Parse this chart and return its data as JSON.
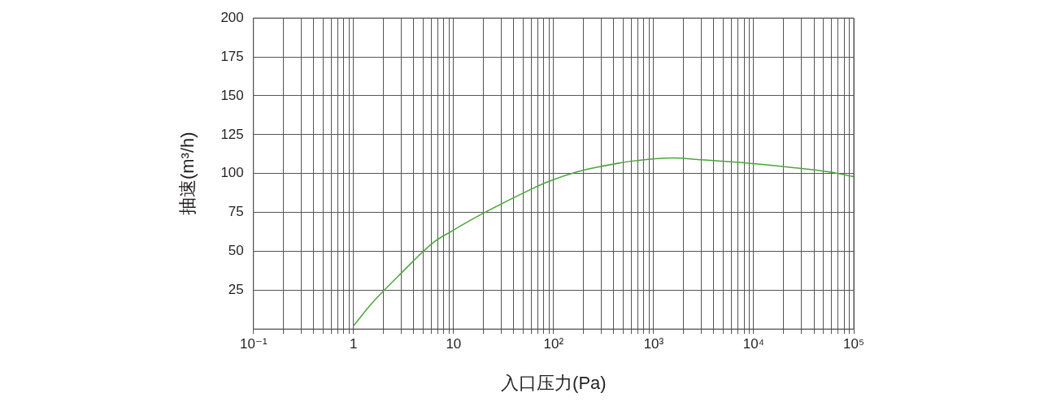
{
  "chart_data": {
    "type": "line",
    "xlabel": "入口压力(Pa)",
    "ylabel": "抽速(m³/h)",
    "log": "x",
    "xlim": [
      0.1,
      100000
    ],
    "xticks": [
      {
        "value": 0.1,
        "label": "10⁻¹"
      },
      {
        "value": 0.2,
        "label": null
      },
      {
        "value": 0.3,
        "label": null
      },
      {
        "value": 0.4,
        "label": null
      },
      {
        "value": 0.5,
        "label": null
      },
      {
        "value": 0.6,
        "label": null
      },
      {
        "value": 0.7,
        "label": null
      },
      {
        "value": 0.8,
        "label": null
      },
      {
        "value": 0.9,
        "label": null
      },
      {
        "value": 1,
        "label": "1"
      },
      {
        "value": 2,
        "label": null
      },
      {
        "value": 3,
        "label": null
      },
      {
        "value": 4,
        "label": null
      },
      {
        "value": 5,
        "label": null
      },
      {
        "value": 6,
        "label": null
      },
      {
        "value": 7,
        "label": null
      },
      {
        "value": 8,
        "label": null
      },
      {
        "value": 9,
        "label": null
      },
      {
        "value": 10,
        "label": "10"
      },
      {
        "value": 20,
        "label": null
      },
      {
        "value": 30,
        "label": null
      },
      {
        "value": 40,
        "label": null
      },
      {
        "value": 50,
        "label": null
      },
      {
        "value": 60,
        "label": null
      },
      {
        "value": 70,
        "label": null
      },
      {
        "value": 80,
        "label": null
      },
      {
        "value": 90,
        "label": null
      },
      {
        "value": 100,
        "label": "10²"
      },
      {
        "value": 200,
        "label": null
      },
      {
        "value": 300,
        "label": null
      },
      {
        "value": 400,
        "label": null
      },
      {
        "value": 500,
        "label": null
      },
      {
        "value": 600,
        "label": null
      },
      {
        "value": 700,
        "label": null
      },
      {
        "value": 800,
        "label": null
      },
      {
        "value": 900,
        "label": null
      },
      {
        "value": 1000,
        "label": "10³"
      },
      {
        "value": 2000,
        "label": null
      },
      {
        "value": 3000,
        "label": null
      },
      {
        "value": 4000,
        "label": null
      },
      {
        "value": 5000,
        "label": null
      },
      {
        "value": 6000,
        "label": null
      },
      {
        "value": 7000,
        "label": null
      },
      {
        "value": 8000,
        "label": null
      },
      {
        "value": 9000,
        "label": null
      },
      {
        "value": 10000,
        "label": "10⁴"
      },
      {
        "value": 20000,
        "label": null
      },
      {
        "value": 30000,
        "label": null
      },
      {
        "value": 40000,
        "label": null
      },
      {
        "value": 50000,
        "label": null
      },
      {
        "value": 60000,
        "label": null
      },
      {
        "value": 70000,
        "label": null
      },
      {
        "value": 80000,
        "label": null
      },
      {
        "value": 90000,
        "label": null
      },
      {
        "value": 100000,
        "label": "10⁵"
      }
    ],
    "ylim": [
      0,
      200
    ],
    "yticks": [
      25,
      50,
      75,
      100,
      125,
      150,
      175,
      200
    ],
    "grid": true,
    "legend": false,
    "marker": "none",
    "line_style": "solid",
    "series": [
      {
        "color": "#4ca43c",
        "x": [
          1,
          1.5,
          2.8,
          6.4,
          9.6,
          18,
          60,
          90,
          170,
          270,
          610,
          1600,
          2800,
          7700,
          23000,
          57000,
          100000
        ],
        "values": [
          2,
          16,
          34,
          56,
          63,
          73,
          90,
          95,
          101,
          104,
          108,
          110,
          109,
          107,
          104,
          101,
          98
        ]
      }
    ]
  }
}
